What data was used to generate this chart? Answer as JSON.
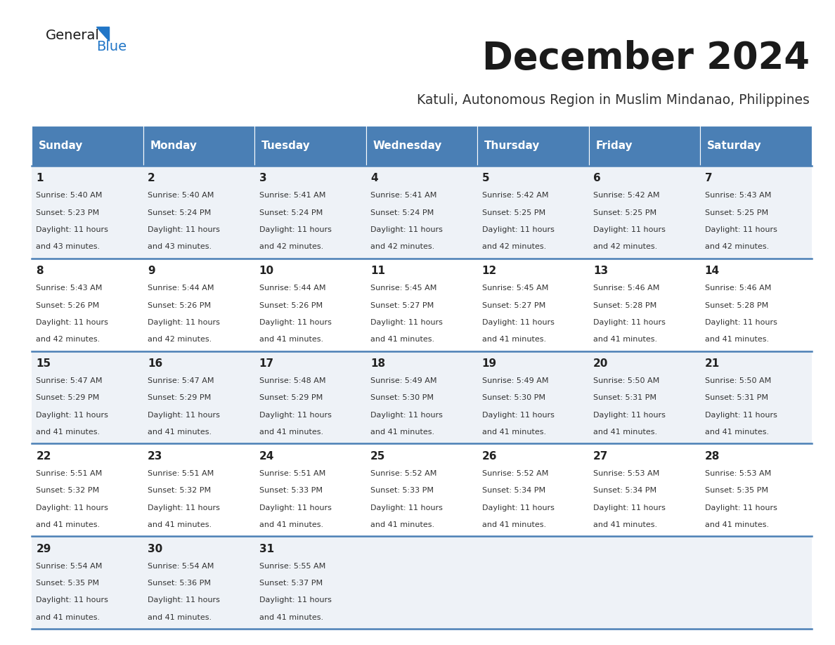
{
  "title": "December 2024",
  "subtitle": "Katuli, Autonomous Region in Muslim Mindanao, Philippines",
  "header_bg_color": "#4a7fb5",
  "header_text_color": "#ffffff",
  "row_line_color": "#4a7fb5",
  "cell_bg_light": "#eef2f7",
  "cell_bg_white": "#ffffff",
  "days_of_week": [
    "Sunday",
    "Monday",
    "Tuesday",
    "Wednesday",
    "Thursday",
    "Friday",
    "Saturday"
  ],
  "calendar_data": [
    [
      {
        "day": 1,
        "sunrise": "5:40 AM",
        "sunset": "5:23 PM",
        "daylight_hours": 11,
        "daylight_minutes": 43
      },
      {
        "day": 2,
        "sunrise": "5:40 AM",
        "sunset": "5:24 PM",
        "daylight_hours": 11,
        "daylight_minutes": 43
      },
      {
        "day": 3,
        "sunrise": "5:41 AM",
        "sunset": "5:24 PM",
        "daylight_hours": 11,
        "daylight_minutes": 42
      },
      {
        "day": 4,
        "sunrise": "5:41 AM",
        "sunset": "5:24 PM",
        "daylight_hours": 11,
        "daylight_minutes": 42
      },
      {
        "day": 5,
        "sunrise": "5:42 AM",
        "sunset": "5:25 PM",
        "daylight_hours": 11,
        "daylight_minutes": 42
      },
      {
        "day": 6,
        "sunrise": "5:42 AM",
        "sunset": "5:25 PM",
        "daylight_hours": 11,
        "daylight_minutes": 42
      },
      {
        "day": 7,
        "sunrise": "5:43 AM",
        "sunset": "5:25 PM",
        "daylight_hours": 11,
        "daylight_minutes": 42
      }
    ],
    [
      {
        "day": 8,
        "sunrise": "5:43 AM",
        "sunset": "5:26 PM",
        "daylight_hours": 11,
        "daylight_minutes": 42
      },
      {
        "day": 9,
        "sunrise": "5:44 AM",
        "sunset": "5:26 PM",
        "daylight_hours": 11,
        "daylight_minutes": 42
      },
      {
        "day": 10,
        "sunrise": "5:44 AM",
        "sunset": "5:26 PM",
        "daylight_hours": 11,
        "daylight_minutes": 41
      },
      {
        "day": 11,
        "sunrise": "5:45 AM",
        "sunset": "5:27 PM",
        "daylight_hours": 11,
        "daylight_minutes": 41
      },
      {
        "day": 12,
        "sunrise": "5:45 AM",
        "sunset": "5:27 PM",
        "daylight_hours": 11,
        "daylight_minutes": 41
      },
      {
        "day": 13,
        "sunrise": "5:46 AM",
        "sunset": "5:28 PM",
        "daylight_hours": 11,
        "daylight_minutes": 41
      },
      {
        "day": 14,
        "sunrise": "5:46 AM",
        "sunset": "5:28 PM",
        "daylight_hours": 11,
        "daylight_minutes": 41
      }
    ],
    [
      {
        "day": 15,
        "sunrise": "5:47 AM",
        "sunset": "5:29 PM",
        "daylight_hours": 11,
        "daylight_minutes": 41
      },
      {
        "day": 16,
        "sunrise": "5:47 AM",
        "sunset": "5:29 PM",
        "daylight_hours": 11,
        "daylight_minutes": 41
      },
      {
        "day": 17,
        "sunrise": "5:48 AM",
        "sunset": "5:29 PM",
        "daylight_hours": 11,
        "daylight_minutes": 41
      },
      {
        "day": 18,
        "sunrise": "5:49 AM",
        "sunset": "5:30 PM",
        "daylight_hours": 11,
        "daylight_minutes": 41
      },
      {
        "day": 19,
        "sunrise": "5:49 AM",
        "sunset": "5:30 PM",
        "daylight_hours": 11,
        "daylight_minutes": 41
      },
      {
        "day": 20,
        "sunrise": "5:50 AM",
        "sunset": "5:31 PM",
        "daylight_hours": 11,
        "daylight_minutes": 41
      },
      {
        "day": 21,
        "sunrise": "5:50 AM",
        "sunset": "5:31 PM",
        "daylight_hours": 11,
        "daylight_minutes": 41
      }
    ],
    [
      {
        "day": 22,
        "sunrise": "5:51 AM",
        "sunset": "5:32 PM",
        "daylight_hours": 11,
        "daylight_minutes": 41
      },
      {
        "day": 23,
        "sunrise": "5:51 AM",
        "sunset": "5:32 PM",
        "daylight_hours": 11,
        "daylight_minutes": 41
      },
      {
        "day": 24,
        "sunrise": "5:51 AM",
        "sunset": "5:33 PM",
        "daylight_hours": 11,
        "daylight_minutes": 41
      },
      {
        "day": 25,
        "sunrise": "5:52 AM",
        "sunset": "5:33 PM",
        "daylight_hours": 11,
        "daylight_minutes": 41
      },
      {
        "day": 26,
        "sunrise": "5:52 AM",
        "sunset": "5:34 PM",
        "daylight_hours": 11,
        "daylight_minutes": 41
      },
      {
        "day": 27,
        "sunrise": "5:53 AM",
        "sunset": "5:34 PM",
        "daylight_hours": 11,
        "daylight_minutes": 41
      },
      {
        "day": 28,
        "sunrise": "5:53 AM",
        "sunset": "5:35 PM",
        "daylight_hours": 11,
        "daylight_minutes": 41
      }
    ],
    [
      {
        "day": 29,
        "sunrise": "5:54 AM",
        "sunset": "5:35 PM",
        "daylight_hours": 11,
        "daylight_minutes": 41
      },
      {
        "day": 30,
        "sunrise": "5:54 AM",
        "sunset": "5:36 PM",
        "daylight_hours": 11,
        "daylight_minutes": 41
      },
      {
        "day": 31,
        "sunrise": "5:55 AM",
        "sunset": "5:37 PM",
        "daylight_hours": 11,
        "daylight_minutes": 41
      },
      null,
      null,
      null,
      null
    ]
  ],
  "logo_general_color": "#1a1a1a",
  "logo_blue_color": "#2176c7",
  "logo_triangle_color": "#2176c7"
}
